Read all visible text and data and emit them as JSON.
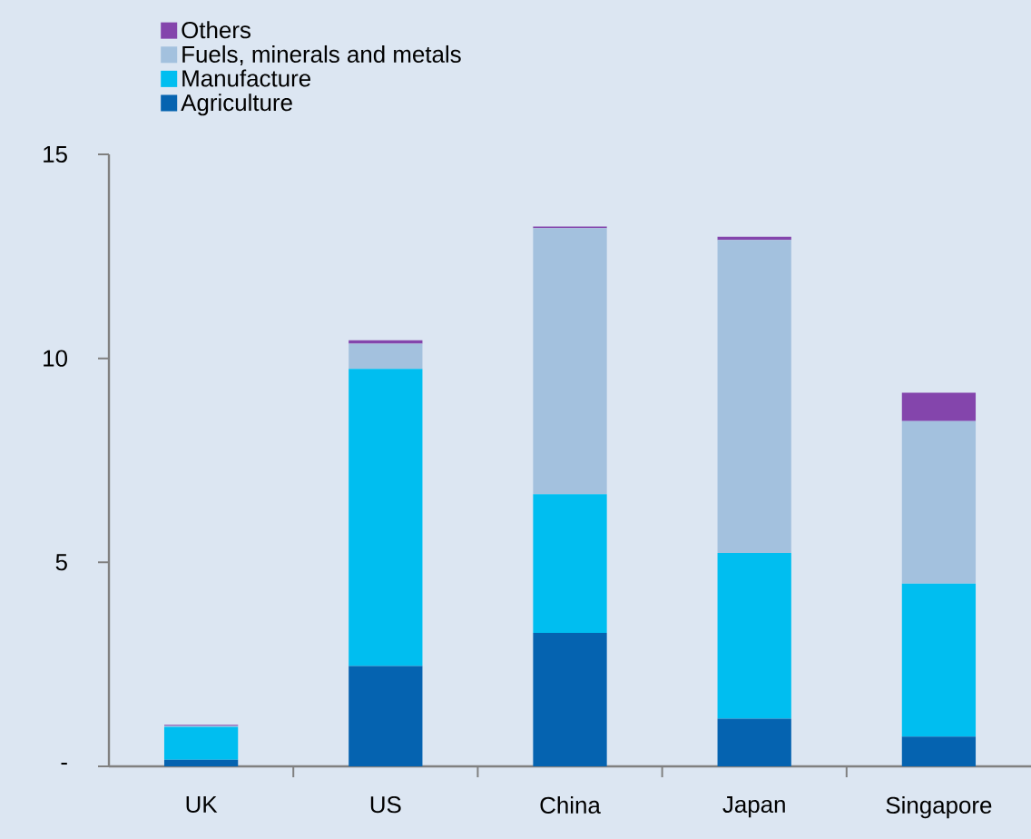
{
  "chart_data": {
    "type": "bar",
    "stacked": true,
    "categories": [
      "UK",
      "US",
      "China",
      "Japan",
      "Singapore"
    ],
    "series": [
      {
        "name": "Agriculture",
        "color": "#0563b0",
        "values": [
          0.16,
          2.46,
          3.27,
          1.17,
          0.73
        ]
      },
      {
        "name": "Manufacture",
        "color": "#00bef0",
        "values": [
          0.81,
          7.28,
          3.4,
          4.06,
          3.75
        ]
      },
      {
        "name": "Fuels, minerals and metals",
        "color": "#a3c1de",
        "values": [
          0.02,
          0.62,
          6.52,
          7.67,
          3.98
        ]
      },
      {
        "name": "Others",
        "color": "#8445ac",
        "values": [
          0.03,
          0.08,
          0.04,
          0.08,
          0.7
        ]
      }
    ],
    "ylim": [
      0,
      15
    ],
    "yticks": [
      {
        "value": 0,
        "label": "-"
      },
      5,
      10,
      15
    ],
    "legend": "top left"
  }
}
